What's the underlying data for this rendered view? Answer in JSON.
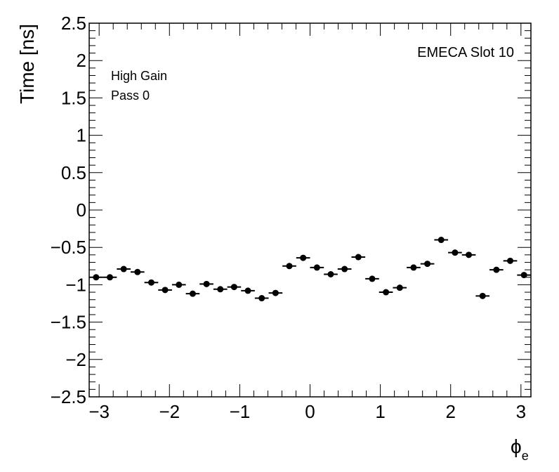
{
  "chart_data": {
    "type": "scatter",
    "title": "",
    "xlabel": "ϕ",
    "xlabel_subscript": "e",
    "ylabel": "Time [ns]",
    "xlim": [
      -3.1416,
      3.1416
    ],
    "ylim": [
      -2.5,
      2.5
    ],
    "x_bin_width": 0.19635,
    "x_ticks": [
      -3,
      -2,
      -1,
      0,
      1,
      2,
      3
    ],
    "x_tick_labels": [
      "−3",
      "−2",
      "−1",
      "0",
      "1",
      "2",
      "3"
    ],
    "y_ticks": [
      -2.5,
      -2,
      -1.5,
      -1,
      -0.5,
      0,
      0.5,
      1,
      1.5,
      2,
      2.5
    ],
    "y_tick_labels": [
      "−2.5",
      "−2",
      "−1.5",
      "−1",
      "−0.5",
      "0",
      "0.5",
      "1",
      "1.5",
      "2",
      "2.5"
    ],
    "grid": false,
    "marker_color": "#000000",
    "annotations": {
      "title_right": "EMECA Slot 10",
      "gain": "High Gain",
      "pass": "Pass 0"
    },
    "series": [
      {
        "x": [
          -3.0434,
          -2.8471,
          -2.6507,
          -2.4544,
          -2.258,
          -2.0617,
          -1.8653,
          -1.669,
          -1.4726,
          -1.2763,
          -1.0799,
          -0.8836,
          -0.6872,
          -0.4909,
          -0.2945,
          -0.0982,
          0.0982,
          0.2945,
          0.4909,
          0.6872,
          0.8836,
          1.0799,
          1.2763,
          1.4726,
          1.669,
          1.8653,
          2.0617,
          2.258,
          2.4544,
          2.6507,
          2.8471,
          3.0434
        ],
        "y": [
          -0.9,
          -0.9,
          -0.79,
          -0.83,
          -0.97,
          -1.07,
          -1.0,
          -1.12,
          -0.99,
          -1.06,
          -1.03,
          -1.08,
          -1.18,
          -1.11,
          -0.75,
          -0.64,
          -0.77,
          -0.86,
          -0.79,
          -0.63,
          -0.92,
          -1.1,
          -1.04,
          -0.77,
          -0.72,
          -0.4,
          -0.57,
          -0.6,
          -1.15,
          -0.8,
          -0.68,
          -0.87
        ]
      }
    ]
  }
}
